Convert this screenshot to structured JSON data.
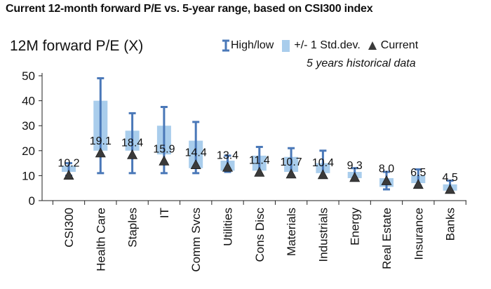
{
  "title": "Current 12-month forward P/E vs. 5-year range, based on CSI300 index",
  "legend": {
    "range_label": "High/low",
    "std_label": "+/- 1 Std.dev.",
    "current_label": "Current"
  },
  "note": "5 years historical data",
  "colors": {
    "range": "#4a78b8",
    "std_box": "#a9cdec",
    "current": "#3a3a3a"
  },
  "chart_data": {
    "type": "bar",
    "ylabel": "12M forward P/E (X)",
    "ylim": [
      0,
      50
    ],
    "yticks": [
      0,
      10,
      20,
      30,
      40,
      50
    ],
    "grid": false,
    "legend_position": "top-right",
    "categories": [
      "CSI300",
      "Health Care",
      "Staples",
      "IT",
      "Comm Svcs",
      "Utilities",
      "Cons Disc",
      "Materials",
      "Industrials",
      "Energy",
      "Real Estate",
      "Insurance",
      "Banks"
    ],
    "current": [
      10.2,
      19.1,
      18.4,
      15.9,
      14.4,
      13.4,
      11.4,
      10.7,
      10.4,
      9.3,
      8.0,
      6.5,
      4.5
    ],
    "current_labels": [
      "10.2",
      "19.1",
      "18.4",
      "15.9",
      "14.4",
      "13.4",
      "11.4",
      "10.7",
      "10.4",
      "9.3",
      "8.0",
      "6.5",
      "4.5"
    ],
    "high": [
      15,
      49,
      35,
      37.5,
      31.5,
      18,
      21.5,
      21,
      20,
      13,
      11.5,
      12.5,
      8
    ],
    "low": [
      10,
      11,
      11,
      11,
      11,
      11.5,
      10.5,
      10,
      9.5,
      8,
      4.5,
      6,
      3.5
    ],
    "std_upper": [
      14,
      40,
      28,
      30,
      24,
      16,
      18,
      17.5,
      15,
      11.5,
      9,
      10,
      6.5
    ],
    "std_lower": [
      11.5,
      20,
      20,
      18.5,
      13,
      12,
      12,
      11.5,
      11,
      9,
      5.5,
      7,
      4
    ]
  }
}
